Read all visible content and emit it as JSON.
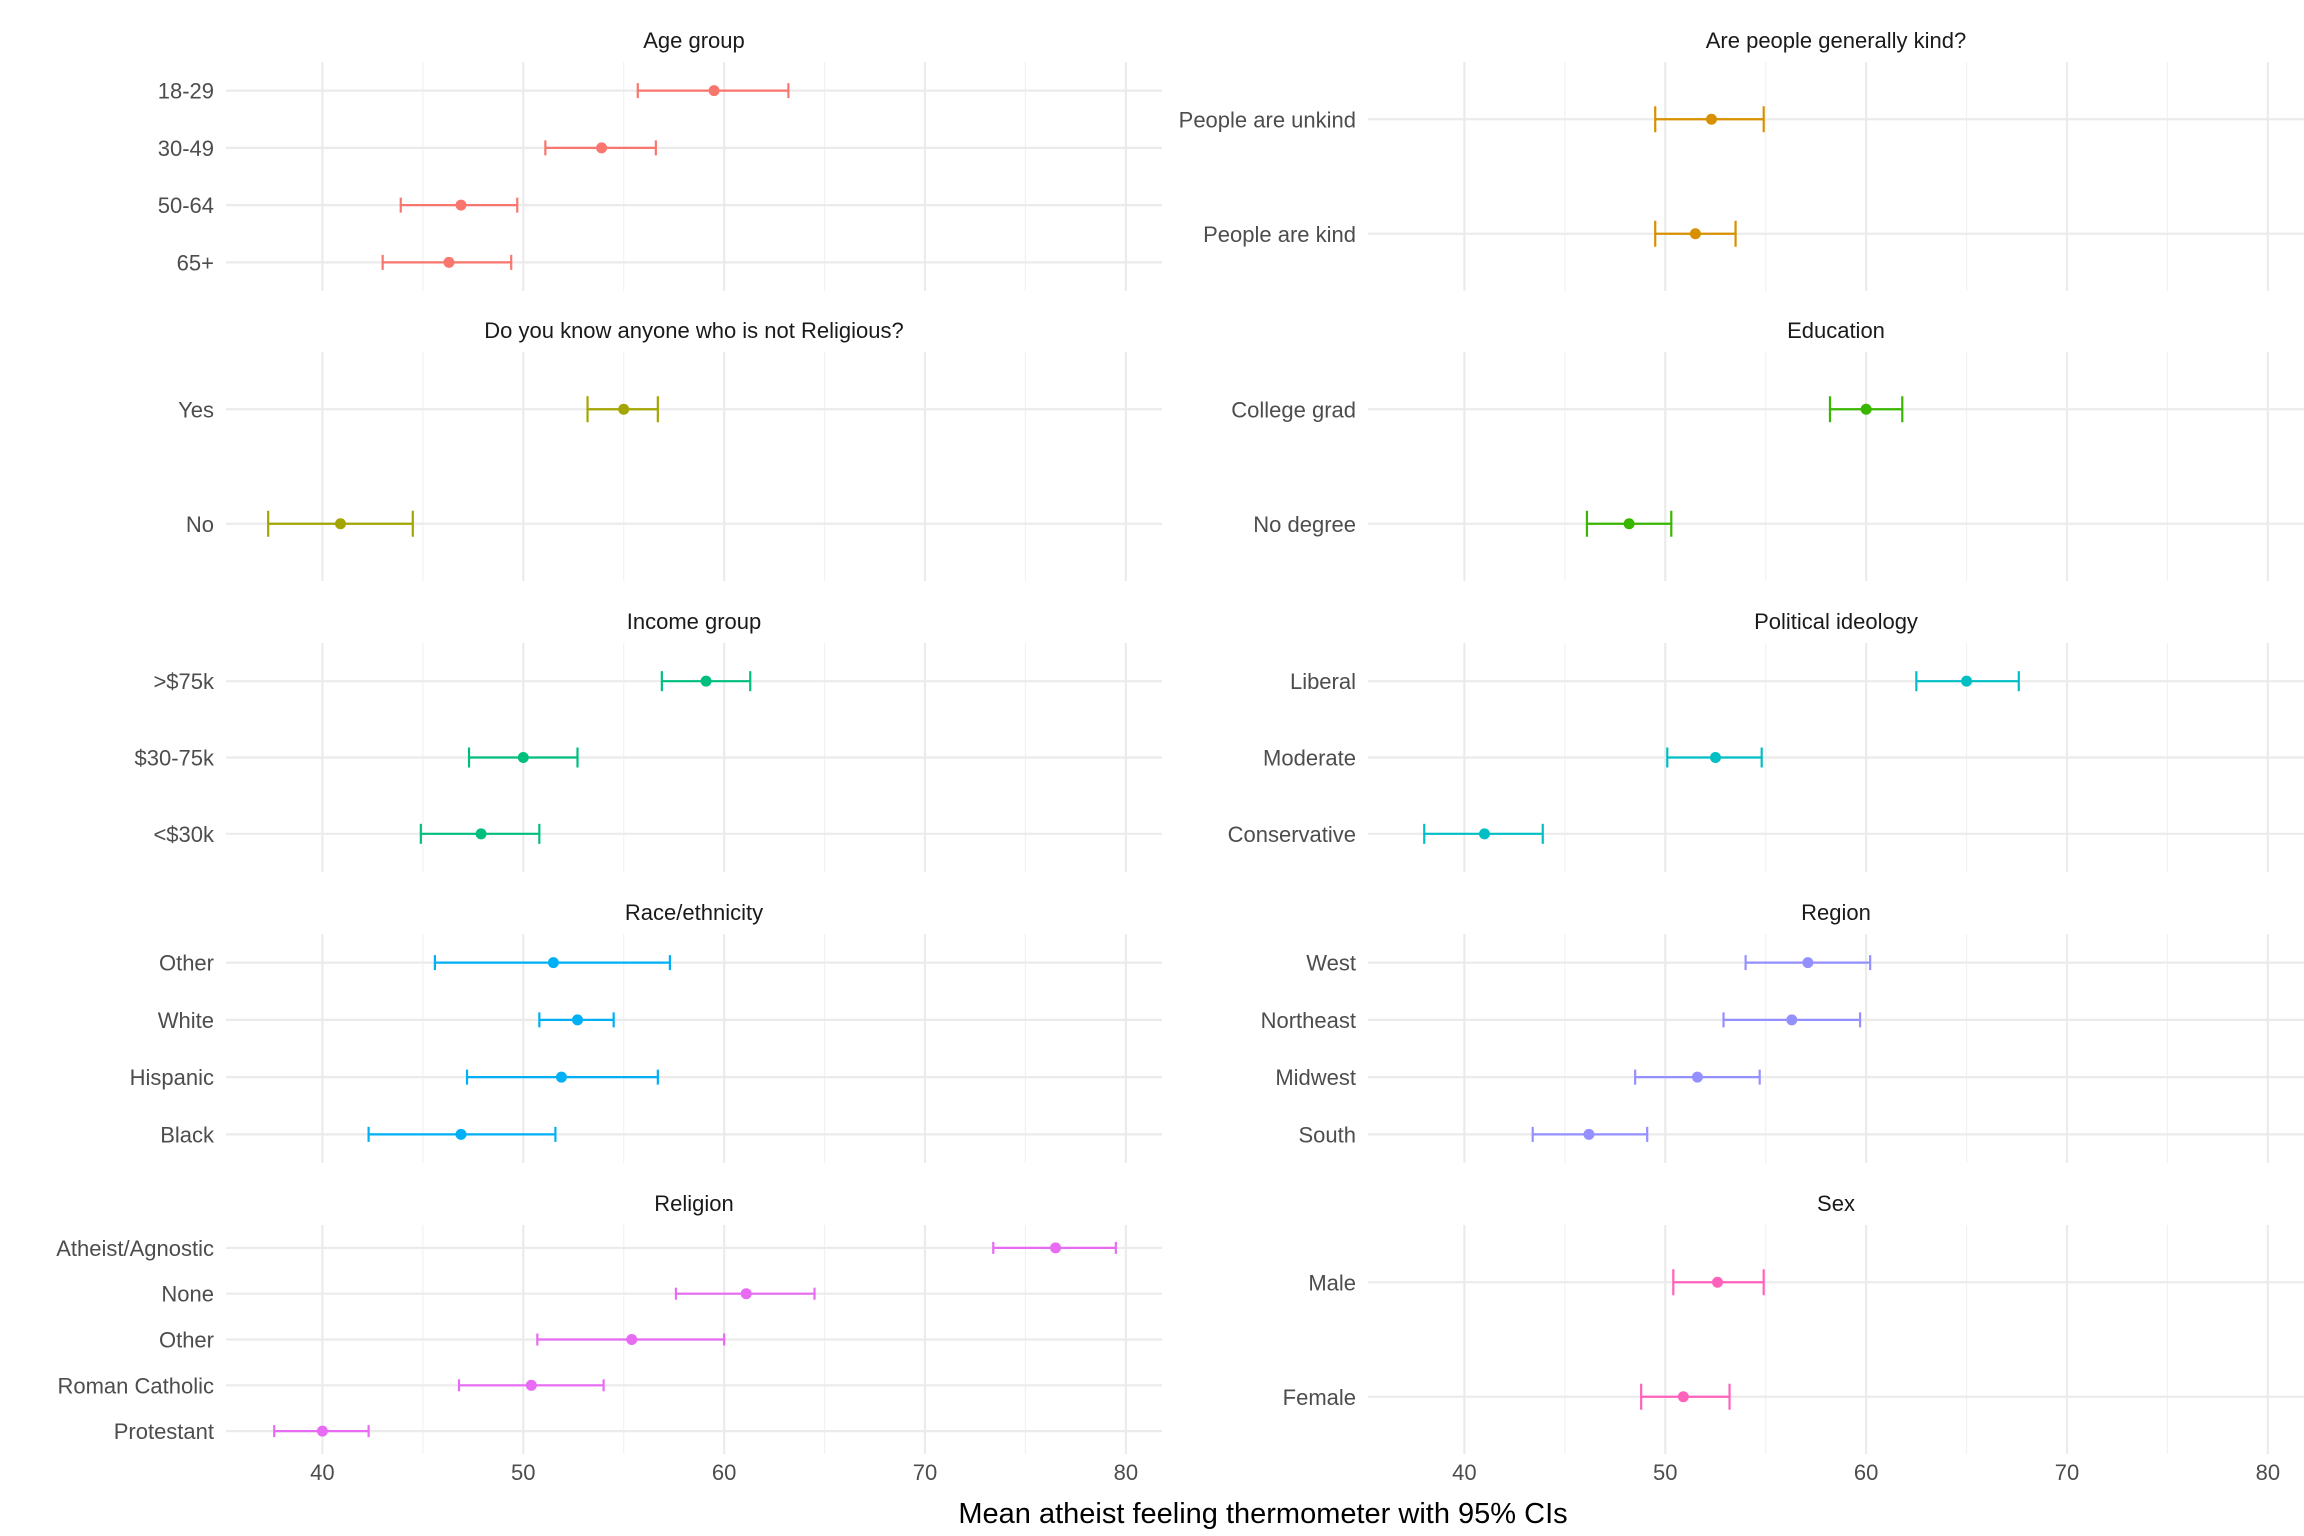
{
  "chart_data": {
    "type": "scatter",
    "subtype": "point-range with error bars, faceted",
    "xlabel": "Mean atheist feeling thermometer with 95% CIs",
    "xlim": [
      35.2,
      81.8
    ],
    "x_ticks": [
      40,
      50,
      60,
      70,
      80
    ],
    "grid": true,
    "legend": "none",
    "panels": [
      {
        "title": "Age group",
        "color": "#F8766D",
        "points": [
          {
            "label": "18-29",
            "value": 59.5,
            "lo": 55.7,
            "hi": 63.2
          },
          {
            "label": "30-49",
            "value": 53.9,
            "lo": 51.1,
            "hi": 56.6
          },
          {
            "label": "50-64",
            "value": 46.9,
            "lo": 43.9,
            "hi": 49.7
          },
          {
            "label": "65+",
            "value": 46.3,
            "lo": 43.0,
            "hi": 49.4
          }
        ]
      },
      {
        "title": "Are people generally kind?",
        "color": "#D89000",
        "points": [
          {
            "label": "People are unkind",
            "value": 52.3,
            "lo": 49.5,
            "hi": 54.9
          },
          {
            "label": "People are kind",
            "value": 51.5,
            "lo": 49.5,
            "hi": 53.5
          }
        ]
      },
      {
        "title": "Do you know anyone who is not Religious?",
        "color": "#A3A500",
        "points": [
          {
            "label": "Yes",
            "value": 55.0,
            "lo": 53.2,
            "hi": 56.7
          },
          {
            "label": "No",
            "value": 40.9,
            "lo": 37.3,
            "hi": 44.5
          }
        ]
      },
      {
        "title": "Education",
        "color": "#39B600",
        "points": [
          {
            "label": "College grad",
            "value": 60.0,
            "lo": 58.2,
            "hi": 61.8
          },
          {
            "label": "No degree",
            "value": 48.2,
            "lo": 46.1,
            "hi": 50.3
          }
        ]
      },
      {
        "title": "Income group",
        "color": "#00BF7D",
        "points": [
          {
            "label": ">$75k",
            "value": 59.1,
            "lo": 56.9,
            "hi": 61.3
          },
          {
            "label": "$30-75k",
            "value": 50.0,
            "lo": 47.3,
            "hi": 52.7
          },
          {
            "label": "<$30k",
            "value": 47.9,
            "lo": 44.9,
            "hi": 50.8
          }
        ]
      },
      {
        "title": "Political ideology",
        "color": "#00BFC4",
        "points": [
          {
            "label": "Liberal",
            "value": 65.0,
            "lo": 62.5,
            "hi": 67.6
          },
          {
            "label": "Moderate",
            "value": 52.5,
            "lo": 50.1,
            "hi": 54.8
          },
          {
            "label": "Conservative",
            "value": 41.0,
            "lo": 38.0,
            "hi": 43.9
          }
        ]
      },
      {
        "title": "Race/ethnicity",
        "color": "#00B0F6",
        "points": [
          {
            "label": "Other",
            "value": 51.5,
            "lo": 45.6,
            "hi": 57.3
          },
          {
            "label": "White",
            "value": 52.7,
            "lo": 50.8,
            "hi": 54.5
          },
          {
            "label": "Hispanic",
            "value": 51.9,
            "lo": 47.2,
            "hi": 56.7
          },
          {
            "label": "Black",
            "value": 46.9,
            "lo": 42.3,
            "hi": 51.6
          }
        ]
      },
      {
        "title": "Region",
        "color": "#9590FF",
        "points": [
          {
            "label": "West",
            "value": 57.1,
            "lo": 54.0,
            "hi": 60.2
          },
          {
            "label": "Northeast",
            "value": 56.3,
            "lo": 52.9,
            "hi": 59.7
          },
          {
            "label": "Midwest",
            "value": 51.6,
            "lo": 48.5,
            "hi": 54.7
          },
          {
            "label": "South",
            "value": 46.2,
            "lo": 43.4,
            "hi": 49.1
          }
        ]
      },
      {
        "title": "Religion",
        "color": "#E76BF3",
        "points": [
          {
            "label": "Atheist/Agnostic",
            "value": 76.5,
            "lo": 73.4,
            "hi": 79.5
          },
          {
            "label": "None",
            "value": 61.1,
            "lo": 57.6,
            "hi": 64.5
          },
          {
            "label": "Other",
            "value": 55.4,
            "lo": 50.7,
            "hi": 60.0
          },
          {
            "label": "Roman Catholic",
            "value": 50.4,
            "lo": 46.8,
            "hi": 54.0
          },
          {
            "label": "Protestant",
            "value": 40.0,
            "lo": 37.6,
            "hi": 42.3
          }
        ]
      },
      {
        "title": "Sex",
        "color": "#FF62BC",
        "points": [
          {
            "label": "Male",
            "value": 52.6,
            "lo": 50.4,
            "hi": 54.9
          },
          {
            "label": "Female",
            "value": 50.9,
            "lo": 48.8,
            "hi": 53.2
          }
        ]
      }
    ]
  }
}
